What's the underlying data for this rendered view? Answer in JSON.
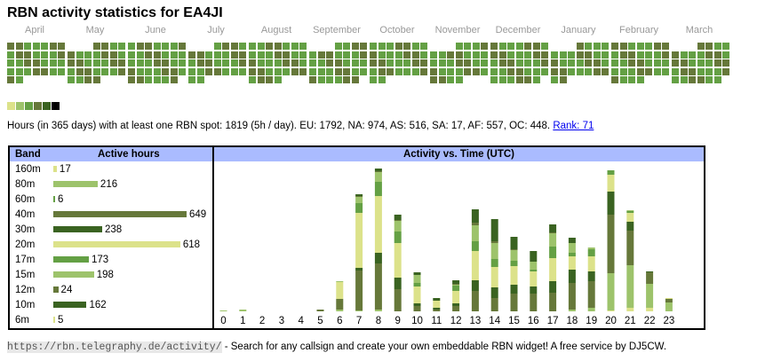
{
  "title": "RBN activity statistics for EA4JI",
  "months": [
    "April",
    "May",
    "June",
    "July",
    "August",
    "September",
    "October",
    "November",
    "December",
    "January",
    "February",
    "March"
  ],
  "legend_colors": [
    "#dce28a",
    "#9dc36b",
    "#64a044",
    "#66783a",
    "#3a6321",
    "#000000"
  ],
  "summary": {
    "text": "Hours (in 365 days) with at least one RBN spot: 1819 (5h / day). EU: 1792, NA: 974, AS: 516, SA: 17, AF: 557, OC: 448.",
    "rank_label": "Rank: 71"
  },
  "bands_table": {
    "header_band": "Band",
    "header_hours": "Active hours",
    "rows": [
      {
        "band": "160m",
        "hours": 17,
        "color": "#dce28a"
      },
      {
        "band": "80m",
        "hours": 216,
        "color": "#9dc36b"
      },
      {
        "band": "60m",
        "hours": 6,
        "color": "#64a044"
      },
      {
        "band": "40m",
        "hours": 649,
        "color": "#66783a"
      },
      {
        "band": "30m",
        "hours": 238,
        "color": "#3a6321"
      },
      {
        "band": "20m",
        "hours": 618,
        "color": "#dce28a"
      },
      {
        "band": "17m",
        "hours": 173,
        "color": "#64a044"
      },
      {
        "band": "15m",
        "hours": 198,
        "color": "#9dc36b"
      },
      {
        "band": "12m",
        "hours": 24,
        "color": "#66783a"
      },
      {
        "band": "10m",
        "hours": 162,
        "color": "#3a6321"
      },
      {
        "band": "6m",
        "hours": 5,
        "color": "#dce28a"
      }
    ]
  },
  "chart_data": {
    "type": "bar",
    "stacked": true,
    "title": "Activity vs. Time (UTC)",
    "xlabel": "",
    "ylabel": "",
    "categories": [
      "0",
      "1",
      "2",
      "3",
      "4",
      "5",
      "6",
      "7",
      "8",
      "9",
      "10",
      "11",
      "12",
      "13",
      "14",
      "15",
      "16",
      "17",
      "18",
      "19",
      "20",
      "21",
      "22",
      "23"
    ],
    "series": [
      {
        "name": "160m",
        "color": "#dce28a",
        "values": [
          0,
          0,
          0,
          0,
          0,
          0,
          0,
          0,
          0,
          0,
          0,
          0,
          0,
          0,
          0,
          0,
          0,
          0,
          0,
          0,
          1,
          4,
          4,
          0
        ]
      },
      {
        "name": "80m",
        "color": "#9dc36b",
        "values": [
          1,
          2,
          0,
          0,
          0,
          0,
          2,
          1,
          2,
          0,
          0,
          0,
          0,
          0,
          0,
          0,
          0,
          0,
          2,
          4,
          42,
          48,
          27,
          10
        ]
      },
      {
        "name": "40m",
        "color": "#66783a",
        "values": [
          0,
          0,
          0,
          0,
          0,
          2,
          12,
          45,
          52,
          25,
          6,
          2,
          6,
          23,
          15,
          20,
          20,
          21,
          30,
          30,
          66,
          39,
          13,
          4
        ]
      },
      {
        "name": "30m",
        "color": "#3a6321",
        "values": [
          0,
          0,
          0,
          0,
          0,
          0,
          0,
          3,
          12,
          13,
          3,
          2,
          3,
          12,
          12,
          10,
          8,
          13,
          15,
          11,
          26,
          10,
          1,
          0
        ]
      },
      {
        "name": "20m",
        "color": "#dce28a",
        "values": [
          0,
          0,
          0,
          0,
          0,
          0,
          19,
          62,
          64,
          39,
          19,
          8,
          14,
          33,
          23,
          21,
          17,
          26,
          15,
          17,
          19,
          10,
          0,
          1
        ]
      },
      {
        "name": "17m",
        "color": "#64a044",
        "values": [
          0,
          0,
          0,
          0,
          0,
          0,
          0,
          11,
          16,
          13,
          4,
          0,
          6,
          11,
          9,
          6,
          2,
          13,
          4,
          8,
          5,
          2,
          0,
          0
        ]
      },
      {
        "name": "15m",
        "color": "#9dc36b",
        "values": [
          0,
          0,
          0,
          0,
          0,
          0,
          1,
          7,
          11,
          12,
          9,
          0,
          1,
          18,
          18,
          12,
          9,
          15,
          11,
          2,
          0,
          1,
          0,
          0
        ]
      },
      {
        "name": "12m",
        "color": "#66783a",
        "values": [
          0,
          0,
          0,
          0,
          0,
          0,
          0,
          1,
          1,
          1,
          0,
          0,
          1,
          3,
          2,
          1,
          0,
          1,
          0,
          0,
          0,
          0,
          0,
          0
        ]
      },
      {
        "name": "10m",
        "color": "#3a6321",
        "values": [
          0,
          0,
          0,
          0,
          0,
          0,
          0,
          2,
          3,
          6,
          3,
          3,
          4,
          15,
          25,
          14,
          12,
          9,
          6,
          0,
          0,
          0,
          0,
          0
        ]
      }
    ],
    "ylim": [
      0,
      165
    ],
    "grid": false,
    "legend": "none"
  },
  "footer": {
    "url": "https://rbn.telegraphy.de/activity/",
    "text": " - Search for any callsign and create your own embeddable RBN widget! A free service by DJ5CW."
  }
}
